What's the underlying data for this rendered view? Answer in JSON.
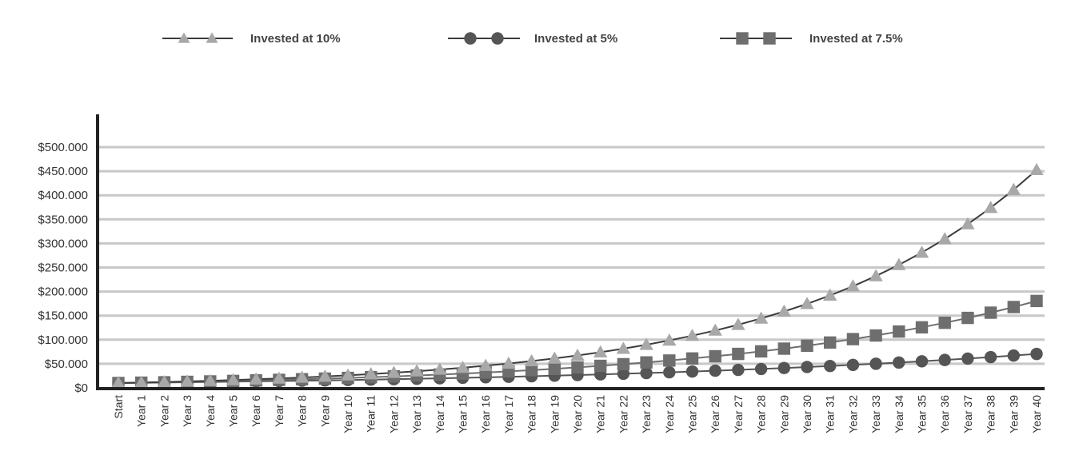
{
  "chart_data": {
    "type": "line",
    "title": "",
    "xlabel": "",
    "ylabel": "",
    "categories": [
      "Start",
      "Year 1",
      "Year 2",
      "Year 3",
      "Year 4",
      "Year 5",
      "Year 6",
      "Year 7",
      "Year 8",
      "Year 9",
      "Year 10",
      "Year 11",
      "Year 12",
      "Year 13",
      "Year 14",
      "Year 15",
      "Year 16",
      "Year 17",
      "Year 18",
      "Year 19",
      "Year 20",
      "Year 21",
      "Year 22",
      "Year 23",
      "Year 24",
      "Year 25",
      "Year 26",
      "Year 27",
      "Year 28",
      "Year 29",
      "Year 30",
      "Year 31",
      "Year 32",
      "Year 33",
      "Year 34",
      "Year 35",
      "Year 36",
      "Year 37",
      "Year 38",
      "Year 39",
      "Year 40"
    ],
    "ylim": [
      0,
      500000
    ],
    "yticks": [
      0,
      50000,
      100000,
      150000,
      200000,
      250000,
      300000,
      350000,
      400000,
      450000,
      500000
    ],
    "ytick_labels": [
      "$0",
      "$50.000",
      "$100.000",
      "$150.000",
      "$200.000",
      "$250.000",
      "$300.000",
      "$350.000",
      "$400.000",
      "$450.000",
      "$500.000"
    ],
    "grid": true,
    "legend_position": "top",
    "series": [
      {
        "name": "Invested at 10%",
        "marker": "triangle",
        "color": "#a8a8a8",
        "line_color": "#3c3c3c",
        "values": [
          10000,
          11000,
          12100,
          13310,
          14641,
          16105,
          17716,
          19487,
          21436,
          23579,
          25937,
          28531,
          31384,
          34523,
          37975,
          41772,
          45950,
          50545,
          55599,
          61159,
          67275,
          74002,
          81403,
          89543,
          98497,
          108347,
          119182,
          131100,
          144210,
          158631,
          174494,
          191943,
          211138,
          232252,
          255477,
          281024,
          309127,
          340039,
          374043,
          411448,
          452593
        ]
      },
      {
        "name": "Invested at 5%",
        "marker": "circle",
        "color": "#555555",
        "line_color": "#555555",
        "values": [
          10000,
          10500,
          11025,
          11576,
          12155,
          12763,
          13401,
          14071,
          14775,
          15513,
          16289,
          17103,
          17959,
          18856,
          19799,
          20789,
          21829,
          22920,
          24066,
          25270,
          26533,
          27860,
          29253,
          30715,
          32251,
          33864,
          35557,
          37335,
          39201,
          41161,
          43219,
          45380,
          47649,
          50032,
          52533,
          55160,
          57918,
          60814,
          63855,
          67048,
          70400
        ]
      },
      {
        "name": "Invested at 7.5%",
        "marker": "square",
        "color": "#6e6e6e",
        "line_color": "#6e6e6e",
        "values": [
          10000,
          10750,
          11556,
          12423,
          13355,
          14356,
          15433,
          16590,
          17835,
          19172,
          20610,
          22156,
          23818,
          25604,
          27524,
          29589,
          31808,
          34194,
          36758,
          39515,
          42479,
          45664,
          49089,
          52771,
          56729,
          60983,
          65557,
          70474,
          75760,
          81442,
          87550,
          94116,
          101174,
          108762,
          116919,
          125688,
          135115,
          145249,
          156142,
          167853,
          180442
        ]
      }
    ]
  }
}
